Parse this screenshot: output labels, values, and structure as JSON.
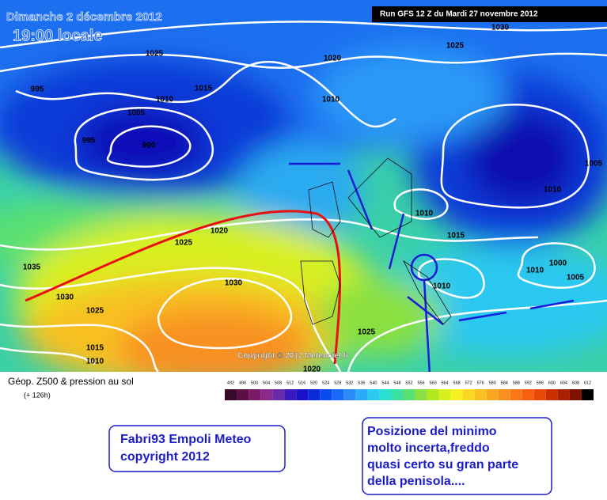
{
  "map": {
    "date": "Dimanche 2 décembre 2012",
    "time": "19:00 locale",
    "run": "Run GFS 12 Z du Mardi 27 novembre 2012",
    "copyright": "Copyright © 2012 Meteociel.fr",
    "isobar_labels": [
      1030,
      1025,
      1025,
      1020,
      995,
      1015,
      1010,
      1010,
      1005,
      995,
      990,
      1005,
      1010,
      1010,
      1020,
      1025,
      1015,
      1035,
      1000,
      1010,
      1005,
      1010,
      1030,
      1030,
      1025,
      1025,
      1015,
      1010,
      1020
    ]
  },
  "legend": {
    "title": "Géop. Z500 & pression au sol",
    "lead": "(+ 126h)",
    "scale": [
      492,
      496,
      500,
      504,
      508,
      512,
      516,
      520,
      524,
      528,
      532,
      536,
      540,
      544,
      548,
      552,
      556,
      560,
      564,
      568,
      572,
      576,
      580,
      584,
      588,
      592,
      596,
      600,
      604,
      608,
      612
    ],
    "colors": [
      "#3a0a2a",
      "#5a1044",
      "#7a1a66",
      "#8a2a8a",
      "#6a2aa8",
      "#3a1ac0",
      "#1a10c8",
      "#0a2ad8",
      "#0a4af0",
      "#1a6af8",
      "#2a8af8",
      "#2aaaf8",
      "#2acaf0",
      "#2ae0d0",
      "#3ae0a0",
      "#5ae070",
      "#8ae040",
      "#b0e820",
      "#d8f020",
      "#f8f020",
      "#f8d820",
      "#f8c020",
      "#f8a820",
      "#f89020",
      "#f87818",
      "#f86010",
      "#e84808",
      "#c83000",
      "#a82000",
      "#801000",
      "#000000"
    ]
  },
  "notes": {
    "author": [
      "Fabri93 Empoli Meteo",
      "copyright 2012"
    ],
    "comment": [
      "Posizione del minimo",
      "molto incerta,freddo",
      "quasi certo su gran parte",
      "della penisola...."
    ]
  }
}
